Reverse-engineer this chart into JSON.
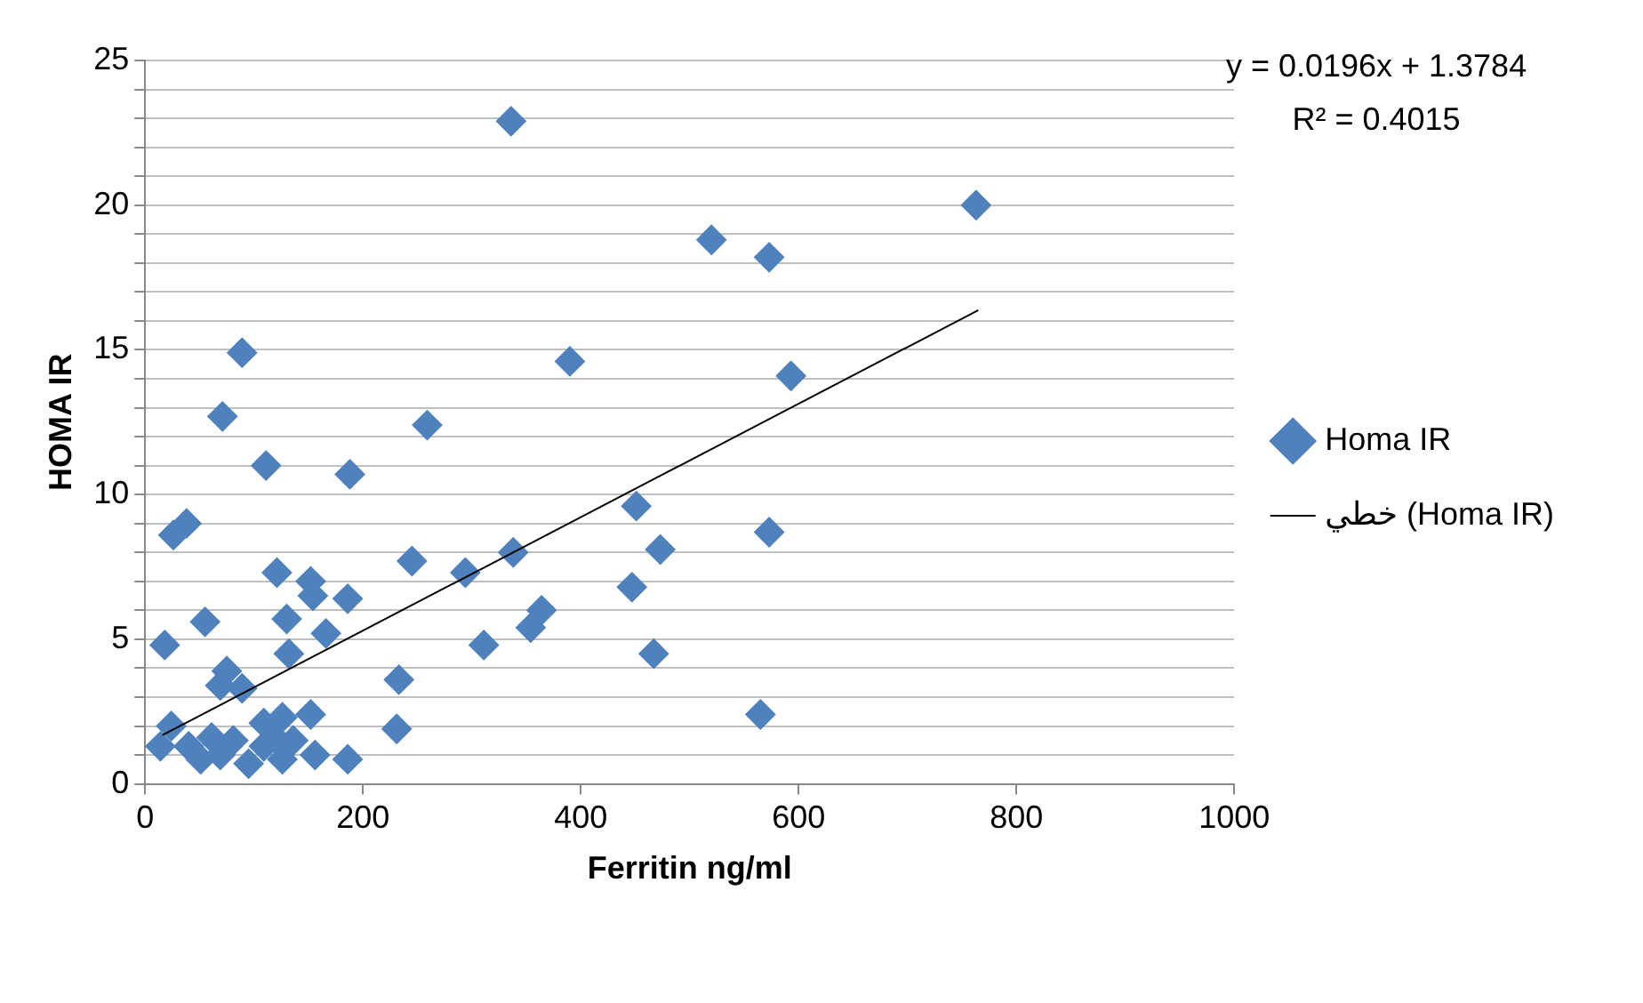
{
  "chart_data": {
    "type": "scatter",
    "xlabel": "Ferritin ng/ml",
    "ylabel": "HOMA IR",
    "annotations": [
      "y = 0.0196x + 1.3784",
      "R² = 0.4015"
    ],
    "xlim": [
      0,
      1000
    ],
    "xticks": [
      0,
      200,
      400,
      600,
      800,
      1000
    ],
    "ylim": [
      0,
      25
    ],
    "yticks": [
      0,
      {
        "value": 1,
        "label": null
      },
      {
        "value": 2,
        "label": null
      },
      {
        "value": 3,
        "label": null
      },
      {
        "value": 4,
        "label": null
      },
      5,
      {
        "value": 6,
        "label": null
      },
      {
        "value": 7,
        "label": null
      },
      {
        "value": 8,
        "label": null
      },
      {
        "value": 9,
        "label": null
      },
      10,
      {
        "value": 11,
        "label": null
      },
      {
        "value": 12,
        "label": null
      },
      {
        "value": 13,
        "label": null
      },
      {
        "value": 14,
        "label": null
      },
      15,
      {
        "value": 16,
        "label": null
      },
      {
        "value": 17,
        "label": null
      },
      {
        "value": 18,
        "label": null
      },
      {
        "value": 19,
        "label": null
      },
      20,
      {
        "value": 21,
        "label": null
      },
      {
        "value": 22,
        "label": null
      },
      {
        "value": 23,
        "label": null
      },
      {
        "value": 24,
        "label": null
      },
      25
    ],
    "grid": "y",
    "legend": "right",
    "series": [
      {
        "name": "Homa IR",
        "color": "#4f81bd",
        "marker": "diamond",
        "x": [
          336,
          763,
          520,
          573,
          390,
          593,
          451,
          573,
          338,
          473,
          447,
          364,
          354,
          311,
          467,
          565,
          89,
          71,
          111,
          188,
          259,
          38,
          26,
          121,
          152,
          154,
          186,
          130,
          55,
          166,
          18,
          132,
          245,
          294,
          233,
          231,
          75,
          69,
          89,
          152,
          126,
          109,
          24,
          186,
          14,
          51,
          69,
          95,
          81,
          109,
          126,
          119,
          61,
          40,
          136,
          156
        ],
        "values": [
          22.9,
          20.0,
          18.8,
          18.2,
          14.6,
          14.1,
          9.6,
          8.7,
          8.0,
          8.1,
          6.8,
          6.0,
          5.4,
          4.8,
          4.5,
          2.4,
          14.9,
          12.7,
          11.0,
          10.7,
          12.4,
          9.0,
          8.6,
          7.3,
          7.0,
          6.5,
          6.4,
          5.7,
          5.6,
          5.2,
          4.8,
          4.5,
          7.7,
          7.3,
          3.6,
          1.9,
          3.9,
          3.4,
          3.3,
          2.4,
          2.3,
          2.1,
          2.0,
          0.85,
          1.3,
          0.85,
          1.0,
          0.7,
          1.5,
          1.3,
          0.85,
          1.6,
          1.6,
          1.3,
          1.5,
          1.0
        ]
      },
      {
        "name": "خطي (Homa IR)",
        "type": "line",
        "color": "#000000",
        "x": [
          16,
          765
        ],
        "values": [
          1.69,
          16.37
        ]
      }
    ]
  }
}
